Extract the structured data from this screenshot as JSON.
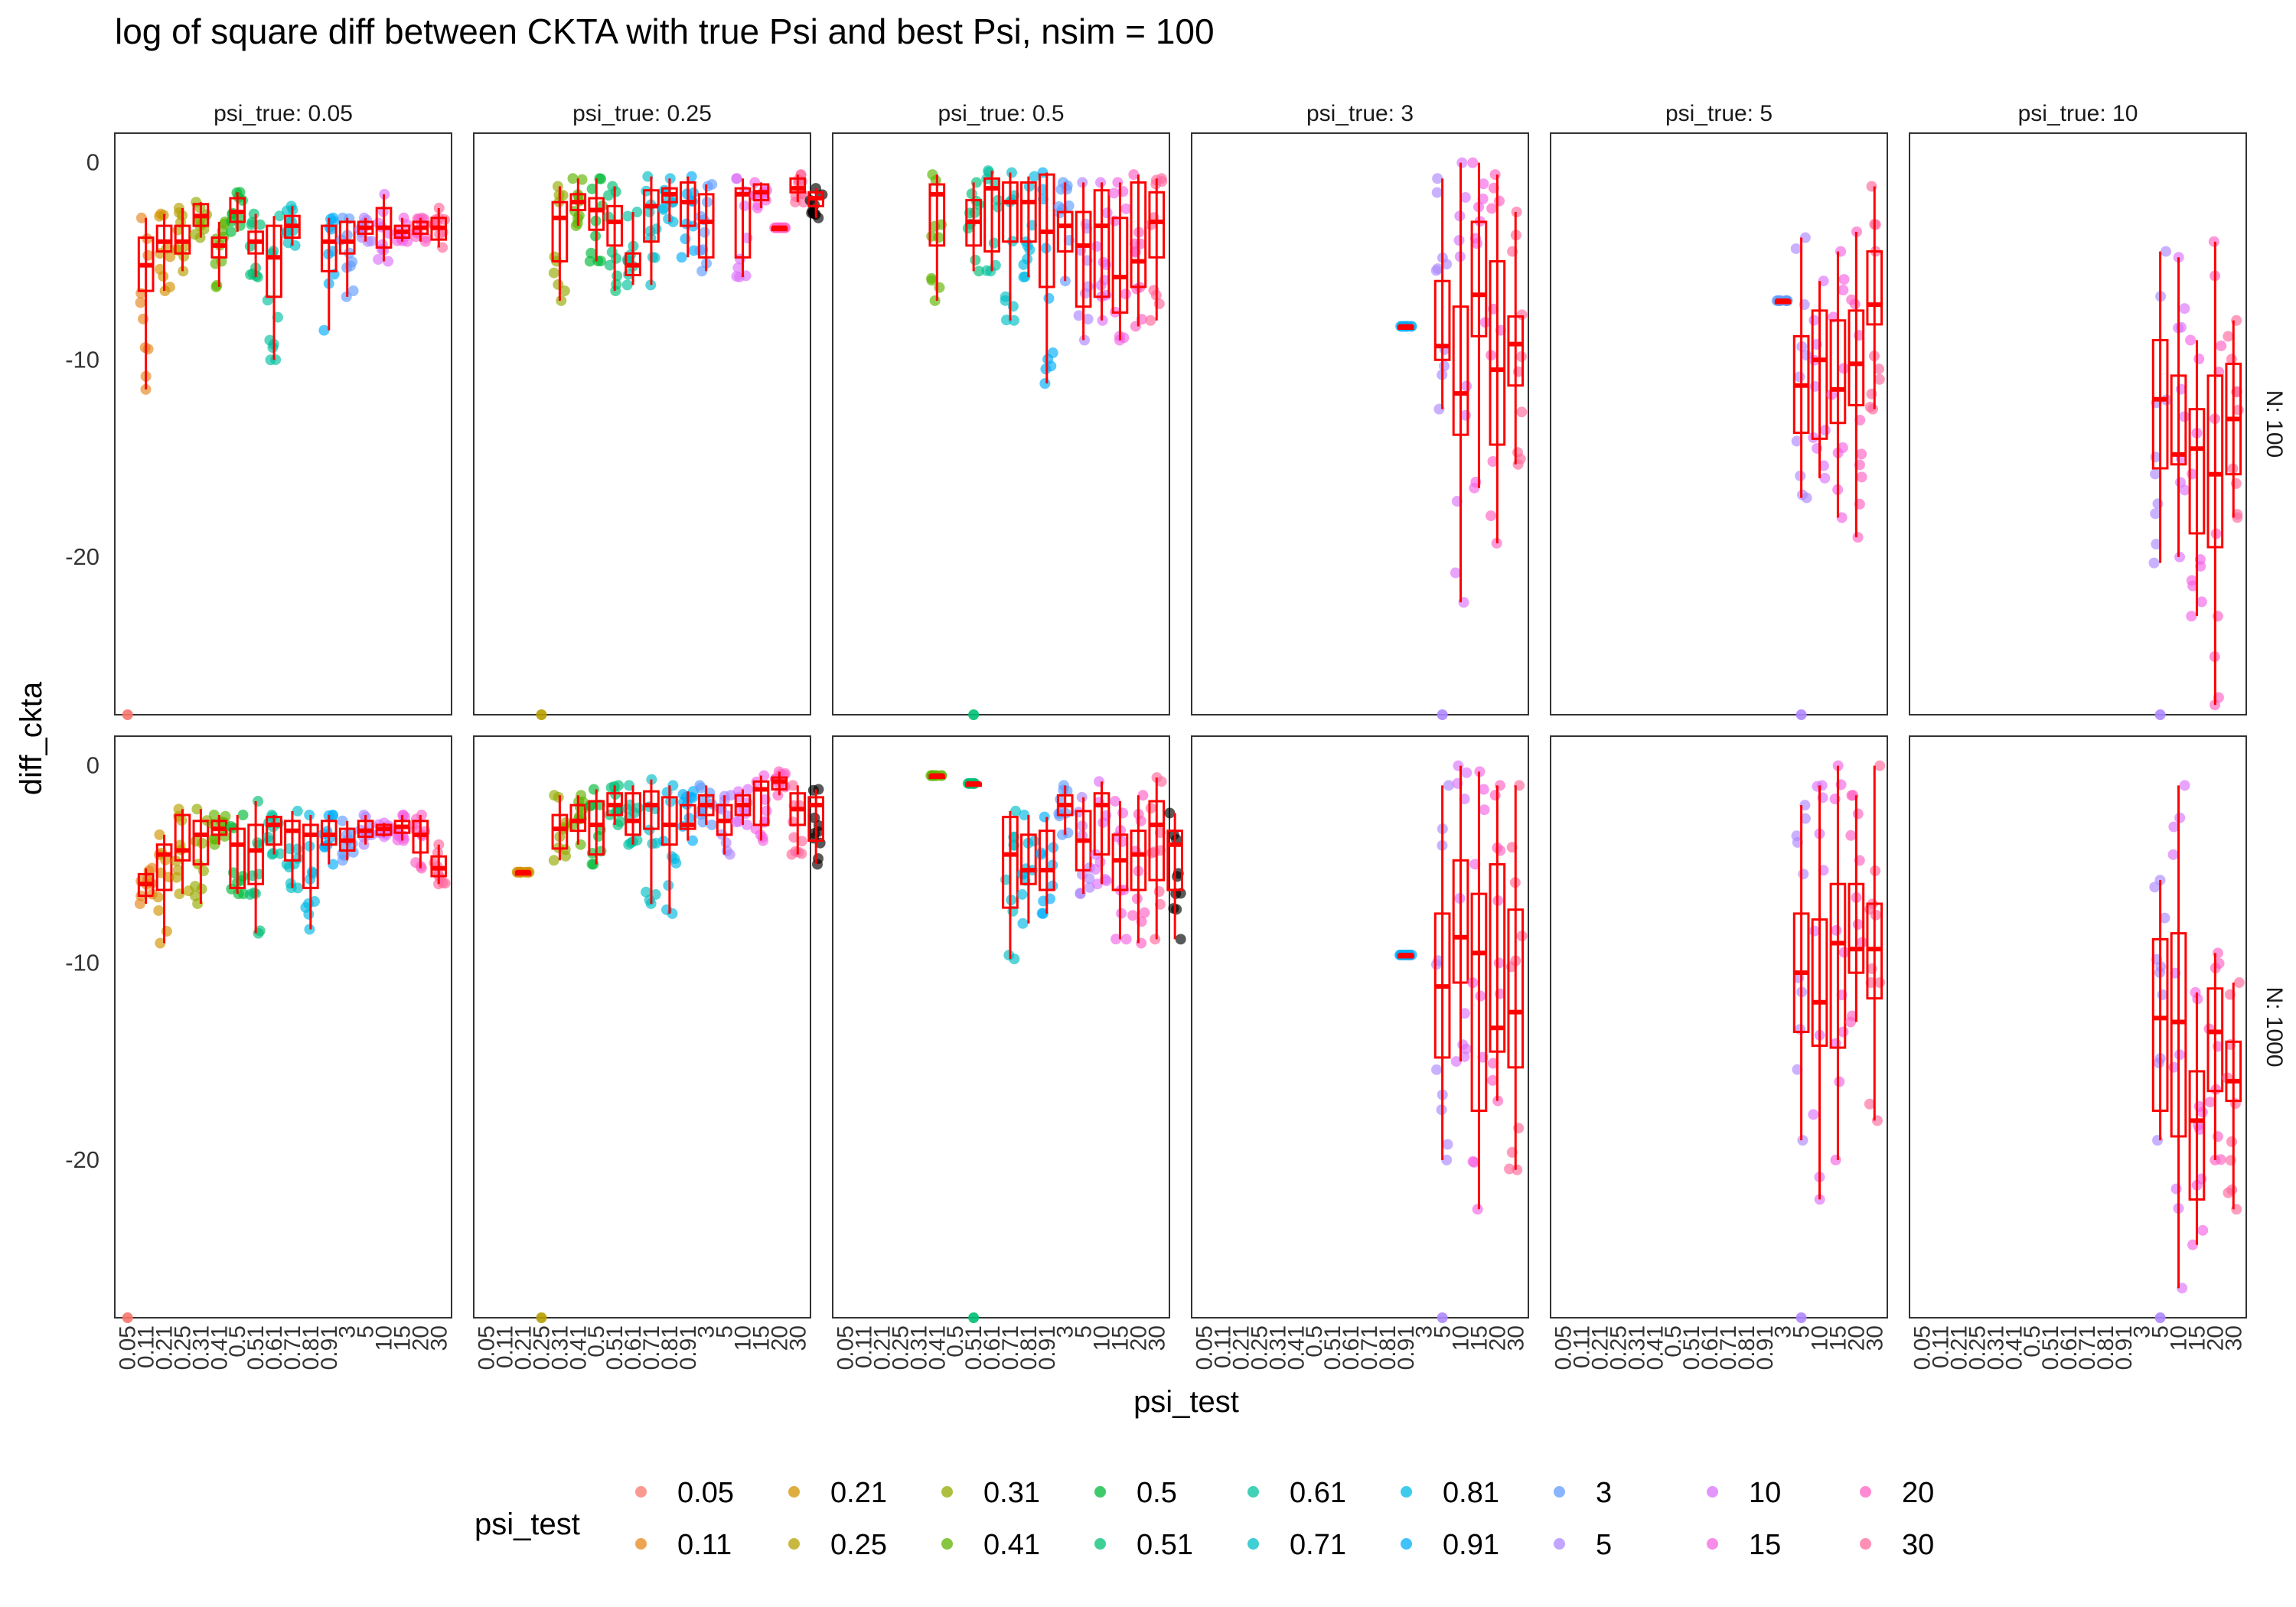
{
  "chart_data": {
    "type": "box",
    "title": "log of square diff between CKTA with true Psi and best Psi, nsim = 100",
    "xlabel": "psi_test",
    "ylabel": "diff_ckta",
    "ylim": [
      -28,
      1.5
    ],
    "y_ticks": [
      0,
      -10,
      -20
    ],
    "categories": [
      "0.05",
      "0.11",
      "0.21",
      "0.25",
      "0.31",
      "0.41",
      "0.5",
      "0.51",
      "0.61",
      "0.71",
      "0.81",
      "0.91",
      "3",
      "5",
      "10",
      "15",
      "20",
      "30"
    ],
    "col_facets": [
      "psi_true: 0.05",
      "psi_true: 0.25",
      "psi_true: 0.5",
      "psi_true: 3",
      "psi_true: 5",
      "psi_true: 10"
    ],
    "row_facets": [
      "N: 100",
      "N: 1000"
    ],
    "legend": {
      "title": "psi_test",
      "position": "bottom",
      "colors": [
        "#F8766D",
        "#E7861B",
        "#D39200",
        "#B79F00",
        "#93AA00",
        "#5EB300",
        "#00BA38",
        "#00BF74",
        "#00C19F",
        "#00BFC4",
        "#00B9E3",
        "#00ADFA",
        "#619CFF",
        "#AE87FF",
        "#DB72FB",
        "#F564E3",
        "#FF61C3",
        "#FF699C"
      ]
    },
    "box_color": "#FF0000",
    "panels": [
      {
        "col": 0,
        "row": 0,
        "boxes": [
          [
            1,
            -6.5,
            -5.2,
            -3.8,
            -11.5,
            -2.8
          ],
          [
            2,
            -4.5,
            -4.0,
            -3.2,
            -6.5,
            -2.6
          ],
          [
            3,
            -4.6,
            -4.0,
            -3.2,
            -5.5,
            -2.3
          ],
          [
            4,
            -3.2,
            -2.7,
            -2.1,
            -3.8,
            -2.0
          ],
          [
            5,
            -4.8,
            -4.2,
            -3.8,
            -6.3,
            -3.0
          ],
          [
            6,
            -3.0,
            -2.5,
            -1.8,
            -3.5,
            -1.5
          ],
          [
            7,
            -4.6,
            -4.0,
            -3.5,
            -5.8,
            -2.6
          ],
          [
            8,
            -6.8,
            -4.8,
            -3.2,
            -10.0,
            -2.7
          ],
          [
            9,
            -3.8,
            -3.2,
            -2.7,
            -4.2,
            -2.2
          ],
          [
            11,
            -5.5,
            -4.0,
            -3.2,
            -8.5,
            -2.8
          ],
          [
            12,
            -4.6,
            -4.0,
            -3.0,
            -6.8,
            -2.8
          ],
          [
            13,
            -3.6,
            -3.3,
            -3.0,
            -4.0,
            -2.8
          ],
          [
            14,
            -4.3,
            -3.3,
            -2.3,
            -5.0,
            -1.6
          ],
          [
            15,
            -3.8,
            -3.5,
            -3.2,
            -4.0,
            -2.8
          ],
          [
            16,
            -3.6,
            -3.3,
            -3.0,
            -4.0,
            -2.8
          ],
          [
            17,
            -3.9,
            -3.3,
            -2.8,
            -4.3,
            -2.3
          ]
        ],
        "floor_dots": [
          0
        ]
      },
      {
        "col": 1,
        "row": 0,
        "boxes": [
          [
            4,
            -5.0,
            -2.8,
            -2.0,
            -7.0,
            -1.2
          ],
          [
            5,
            -2.4,
            -2.0,
            -1.6,
            -3.2,
            -0.8
          ],
          [
            6,
            -3.4,
            -2.4,
            -1.8,
            -5.0,
            -0.8
          ],
          [
            7,
            -4.2,
            -3.0,
            -2.2,
            -6.5,
            -1.2
          ],
          [
            8,
            -5.7,
            -5.2,
            -4.6,
            -6.2,
            -2.5
          ],
          [
            9,
            -4.0,
            -2.2,
            -1.4,
            -6.2,
            -0.7
          ],
          [
            10,
            -2.0,
            -1.6,
            -1.3,
            -3.0,
            -0.8
          ],
          [
            11,
            -3.2,
            -2.0,
            -1.0,
            -4.8,
            -0.7
          ],
          [
            12,
            -4.8,
            -3.0,
            -1.6,
            -5.5,
            -1.1
          ],
          [
            14,
            -4.8,
            -1.6,
            -1.3,
            -5.8,
            -0.8
          ],
          [
            15,
            -1.9,
            -1.5,
            -1.1,
            -2.3,
            -1.0
          ],
          [
            16,
            -3.3,
            -3.3,
            -3.3,
            -3.3,
            -3.3
          ],
          [
            17,
            -1.5,
            -1.3,
            -0.8,
            -2.0,
            -0.6
          ],
          [
            18,
            -2.2,
            -1.8,
            -1.5,
            -2.8,
            -1.3
          ]
        ],
        "floor_dots": [
          3
        ]
      },
      {
        "col": 2,
        "row": 0,
        "boxes": [
          [
            5,
            -4.2,
            -1.6,
            -1.1,
            -7.0,
            -0.6
          ],
          [
            7,
            -4.2,
            -3.0,
            -1.9,
            -5.5,
            -1.0
          ],
          [
            8,
            -4.5,
            -1.3,
            -0.8,
            -5.5,
            -0.4
          ],
          [
            9,
            -4.0,
            -2.0,
            -1.0,
            -8.0,
            -0.5
          ],
          [
            10,
            -4.0,
            -2.0,
            -1.0,
            -5.8,
            -0.7
          ],
          [
            11,
            -6.3,
            -3.5,
            -0.6,
            -11.2,
            -0.5
          ],
          [
            12,
            -4.5,
            -3.2,
            -2.5,
            -6.0,
            -1.0
          ],
          [
            13,
            -7.3,
            -4.2,
            -2.5,
            -9.0,
            -1.0
          ],
          [
            14,
            -6.8,
            -3.2,
            -1.4,
            -8.0,
            -1.0
          ],
          [
            15,
            -7.6,
            -5.8,
            -2.8,
            -9.0,
            -1.0
          ],
          [
            16,
            -6.3,
            -5.0,
            -1.0,
            -8.3,
            -0.6
          ],
          [
            17,
            -4.8,
            -3.0,
            -1.5,
            -8.0,
            -0.8
          ]
        ],
        "floor_dots": [
          7
        ]
      },
      {
        "col": 3,
        "row": 0,
        "boxes": [
          [
            11,
            -8.3,
            -8.3,
            -8.3,
            -8.3,
            -8.3
          ],
          [
            13,
            -10.0,
            -9.3,
            -6.0,
            -12.5,
            -0.8
          ],
          [
            14,
            -13.8,
            -11.7,
            -7.3,
            -22.3,
            0.0
          ],
          [
            15,
            -8.8,
            -6.7,
            -3.0,
            -16.5,
            0.0
          ],
          [
            16,
            -14.3,
            -10.5,
            -5.0,
            -19.3,
            -0.6
          ],
          [
            17,
            -11.3,
            -9.2,
            -7.8,
            -15.3,
            -2.5
          ]
        ],
        "floor_dots": [
          13
        ]
      },
      {
        "col": 4,
        "row": 0,
        "boxes": [
          [
            12,
            -7.0,
            -7.0,
            -7.0,
            -7.0,
            -7.0
          ],
          [
            13,
            -13.7,
            -11.3,
            -8.8,
            -17.0,
            -3.8
          ],
          [
            14,
            -14.0,
            -10.0,
            -7.5,
            -16.0,
            -6.0
          ],
          [
            15,
            -13.2,
            -11.5,
            -8.0,
            -18.0,
            -4.5
          ],
          [
            16,
            -12.3,
            -10.2,
            -7.5,
            -19.0,
            -3.5
          ],
          [
            17,
            -8.2,
            -7.2,
            -4.5,
            -12.5,
            -1.2
          ]
        ],
        "floor_dots": [
          13
        ]
      },
      {
        "col": 5,
        "row": 0,
        "boxes": [
          [
            13,
            -15.5,
            -12.0,
            -9.0,
            -20.3,
            -4.5
          ],
          [
            14,
            -15.3,
            -14.8,
            -10.8,
            -20.0,
            -4.8
          ],
          [
            15,
            -18.8,
            -14.5,
            -12.5,
            -23.0,
            -9.0
          ],
          [
            16,
            -19.5,
            -15.8,
            -10.8,
            -27.5,
            -4.0
          ],
          [
            17,
            -15.8,
            -13.0,
            -10.2,
            -18.0,
            -8.0
          ]
        ],
        "floor_dots": [
          13
        ]
      },
      {
        "col": 0,
        "row": 1,
        "boxes": [
          [
            1,
            -6.6,
            -6.0,
            -5.5,
            -7.0,
            -5.2
          ],
          [
            2,
            -6.3,
            -4.5,
            -4.0,
            -9.0,
            -3.5
          ],
          [
            3,
            -4.8,
            -4.3,
            -2.5,
            -6.5,
            -2.2
          ],
          [
            4,
            -5.0,
            -3.5,
            -2.8,
            -7.0,
            -2.2
          ],
          [
            5,
            -3.5,
            -3.2,
            -2.8,
            -4.0,
            -2.5
          ],
          [
            6,
            -6.2,
            -4.0,
            -3.2,
            -6.5,
            -2.5
          ],
          [
            7,
            -6.0,
            -4.3,
            -3.0,
            -8.5,
            -1.8
          ],
          [
            8,
            -4.0,
            -3.0,
            -2.6,
            -4.5,
            -2.5
          ],
          [
            9,
            -4.8,
            -3.3,
            -2.8,
            -6.2,
            -2.3
          ],
          [
            10,
            -6.2,
            -3.5,
            -3.0,
            -8.3,
            -2.5
          ],
          [
            11,
            -4.0,
            -3.5,
            -2.8,
            -5.0,
            -2.5
          ],
          [
            12,
            -4.3,
            -3.8,
            -3.2,
            -4.8,
            -2.8
          ],
          [
            13,
            -3.6,
            -3.3,
            -2.8,
            -4.0,
            -2.5
          ],
          [
            14,
            -3.5,
            -3.2,
            -3.0,
            -3.6,
            -2.9
          ],
          [
            15,
            -3.4,
            -3.1,
            -2.8,
            -3.8,
            -2.5
          ],
          [
            16,
            -4.4,
            -3.5,
            -2.8,
            -5.2,
            -2.5
          ],
          [
            17,
            -5.6,
            -5.2,
            -4.6,
            -6.0,
            -4.0
          ]
        ],
        "floor_dots": [
          0
        ]
      },
      {
        "col": 1,
        "row": 1,
        "boxes": [
          [
            2,
            -5.4,
            -5.4,
            -5.4,
            -5.4,
            -5.4
          ],
          [
            4,
            -4.2,
            -3.2,
            -2.5,
            -4.8,
            -1.5
          ],
          [
            5,
            -3.3,
            -2.8,
            -2.0,
            -4.0,
            -1.5
          ],
          [
            6,
            -4.5,
            -3.0,
            -1.8,
            -5.0,
            -1.2
          ],
          [
            7,
            -2.5,
            -2.0,
            -1.4,
            -3.0,
            -1.0
          ],
          [
            8,
            -3.5,
            -2.8,
            -1.4,
            -4.0,
            -1.0
          ],
          [
            9,
            -3.2,
            -2.0,
            -1.3,
            -7.0,
            -0.7
          ],
          [
            10,
            -4.0,
            -3.0,
            -1.6,
            -7.5,
            -1.0
          ],
          [
            11,
            -3.2,
            -3.0,
            -2.0,
            -3.8,
            -1.3
          ],
          [
            12,
            -2.5,
            -2.0,
            -1.5,
            -3.0,
            -1.0
          ],
          [
            13,
            -3.5,
            -2.8,
            -2.0,
            -4.5,
            -1.5
          ],
          [
            14,
            -2.5,
            -2.0,
            -1.5,
            -3.0,
            -1.2
          ],
          [
            15,
            -3.0,
            -1.2,
            -0.8,
            -3.8,
            -0.5
          ],
          [
            16,
            -1.2,
            -0.8,
            -0.6,
            -1.5,
            -0.3
          ],
          [
            17,
            -3.0,
            -2.2,
            -1.4,
            -4.5,
            -1.0
          ],
          [
            18,
            -3.8,
            -2.0,
            -1.6,
            -5.0,
            -1.2
          ]
        ],
        "floor_dots": [
          3
        ]
      },
      {
        "col": 2,
        "row": 1,
        "boxes": [
          [
            5,
            -0.5,
            -0.5,
            -0.5,
            -0.5,
            -0.5
          ],
          [
            7,
            -0.9,
            -0.9,
            -0.9,
            -0.9,
            -0.9
          ],
          [
            9,
            -7.2,
            -4.5,
            -2.6,
            -9.8,
            -2.3
          ],
          [
            10,
            -6.0,
            -5.3,
            -3.5,
            -8.0,
            -2.5
          ],
          [
            11,
            -6.3,
            -5.3,
            -3.3,
            -7.5,
            -2.6
          ],
          [
            12,
            -2.5,
            -2.0,
            -1.5,
            -3.5,
            -1.0
          ],
          [
            13,
            -5.3,
            -3.8,
            -2.3,
            -6.5,
            -1.6
          ],
          [
            14,
            -4.5,
            -2.0,
            -1.4,
            -6.0,
            -0.8
          ],
          [
            15,
            -6.3,
            -4.8,
            -3.5,
            -8.8,
            -1.8
          ],
          [
            16,
            -6.3,
            -4.5,
            -3.3,
            -9.0,
            -1.5
          ],
          [
            17,
            -5.8,
            -3.0,
            -1.8,
            -8.8,
            -0.6
          ],
          [
            18,
            -6.3,
            -4.0,
            -3.3,
            -8.8,
            -2.4
          ]
        ],
        "floor_dots": [
          7
        ]
      },
      {
        "col": 3,
        "row": 1,
        "boxes": [
          [
            11,
            -9.6,
            -9.6,
            -9.6,
            -9.6,
            -9.6
          ],
          [
            13,
            -14.8,
            -11.2,
            -7.5,
            -20.0,
            -1.0
          ],
          [
            14,
            -11.0,
            -8.7,
            -4.8,
            -15.0,
            0.0
          ],
          [
            15,
            -17.5,
            -9.5,
            -6.5,
            -22.5,
            -0.3
          ],
          [
            16,
            -14.5,
            -13.3,
            -5.0,
            -17.0,
            -1.0
          ],
          [
            17,
            -15.3,
            -12.5,
            -7.3,
            -20.5,
            -1.0
          ]
        ],
        "floor_dots": [
          13
        ]
      },
      {
        "col": 4,
        "row": 1,
        "boxes": [
          [
            13,
            -13.5,
            -10.5,
            -7.5,
            -19.0,
            -2.0
          ],
          [
            14,
            -14.2,
            -12.0,
            -7.8,
            -22.0,
            -1.0
          ],
          [
            15,
            -14.3,
            -9.0,
            -6.0,
            -20.0,
            0.0
          ],
          [
            16,
            -10.5,
            -9.3,
            -6.0,
            -13.0,
            -1.5
          ],
          [
            17,
            -11.8,
            -9.3,
            -7.0,
            -18.0,
            0.0
          ]
        ],
        "floor_dots": [
          13
        ]
      },
      {
        "col": 5,
        "row": 1,
        "boxes": [
          [
            13,
            -17.5,
            -12.8,
            -8.8,
            -19.0,
            -5.8
          ],
          [
            14,
            -18.8,
            -13.0,
            -8.5,
            -26.5,
            -1.0
          ],
          [
            15,
            -22.0,
            -18.0,
            -15.5,
            -24.3,
            -11.5
          ],
          [
            16,
            -16.5,
            -13.5,
            -11.3,
            -20.0,
            -9.5
          ],
          [
            17,
            -17.0,
            -16.0,
            -14.0,
            -22.5,
            -11.0
          ]
        ],
        "floor_dots": [
          13
        ]
      }
    ]
  }
}
